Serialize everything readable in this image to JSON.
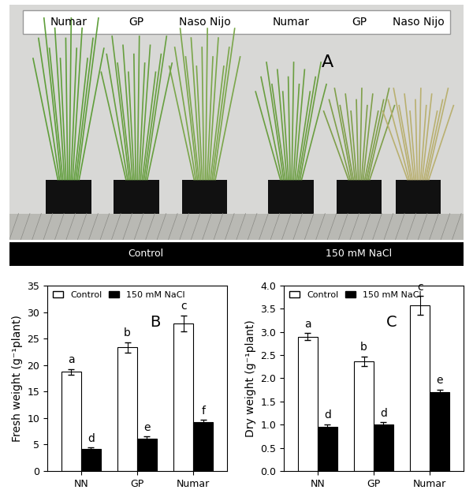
{
  "panel_a": {
    "panel_label": "A",
    "labels": [
      "Numar",
      "GP",
      "Naso Nijo",
      "Numar",
      "GP",
      "Naso Nijo"
    ],
    "conditions": [
      "Control",
      "150 mM NaCl"
    ]
  },
  "chart_data": [
    {
      "type": "bar",
      "panel_label": "B",
      "y_label": "Fresh weight (g⁻¹plant)",
      "categories": [
        "NN",
        "GP",
        "Numar"
      ],
      "series": [
        {
          "name": "Control",
          "color": "#ffffff",
          "values": [
            18.7,
            23.3,
            27.9
          ],
          "errors": [
            0.5,
            1.0,
            1.5
          ],
          "letters": [
            "a",
            "b",
            "c"
          ]
        },
        {
          "name": "150 mM NaCl",
          "color": "#000000",
          "values": [
            4.1,
            6.1,
            9.2
          ],
          "errors": [
            0.3,
            0.4,
            0.4
          ],
          "letters": [
            "d",
            "e",
            "f"
          ]
        }
      ],
      "ylim": [
        0,
        35
      ],
      "yticks": [
        0,
        5,
        10,
        15,
        20,
        25,
        30,
        35
      ],
      "legend": "upper left"
    },
    {
      "type": "bar",
      "panel_label": "C",
      "y_label": "Dry weight (g⁻¹plant)",
      "categories": [
        "NN",
        "GP",
        "Numar"
      ],
      "series": [
        {
          "name": "Control",
          "color": "#ffffff",
          "values": [
            2.9,
            2.37,
            3.57
          ],
          "errors": [
            0.07,
            0.1,
            0.2
          ],
          "letters": [
            "a",
            "b",
            "c"
          ]
        },
        {
          "name": "150 mM NaCl",
          "color": "#000000",
          "values": [
            0.95,
            1.0,
            1.7
          ],
          "errors": [
            0.05,
            0.05,
            0.06
          ],
          "letters": [
            "d",
            "d",
            "e"
          ]
        }
      ],
      "ylim": [
        0,
        4.0
      ],
      "yticks": [
        {
          "value": 0,
          "label": "0.0"
        },
        0.5,
        {
          "value": 1,
          "label": "1.0"
        },
        1.5,
        {
          "value": 2,
          "label": "2.0"
        },
        2.5,
        {
          "value": 3,
          "label": "3.0"
        },
        3.5,
        {
          "value": 4,
          "label": "4.0"
        }
      ],
      "legend": "upper left"
    }
  ]
}
